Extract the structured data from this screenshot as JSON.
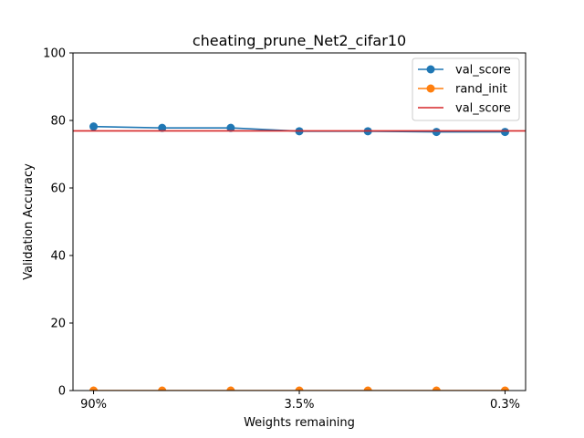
{
  "chart_data": {
    "type": "line",
    "title": "cheating_prune_Net2_cifar10",
    "xlabel": "Weights remaining",
    "ylabel": "Validation Accuracy",
    "x": [
      0,
      1,
      2,
      3,
      4,
      5,
      6
    ],
    "xlim": [
      -0.3,
      6.3
    ],
    "xticks": [
      {
        "x": 0,
        "label": "90%"
      },
      {
        "x": 3,
        "label": "3.5%"
      },
      {
        "x": 6,
        "label": "0.3%"
      }
    ],
    "ylim": [
      0,
      100
    ],
    "yticks": [
      0,
      20,
      40,
      60,
      80,
      100
    ],
    "grid": false,
    "legend_position": "top-right",
    "series": [
      {
        "name": "val_score",
        "style": "line-marker",
        "color": "#1f77b4",
        "values": [
          78.2,
          77.8,
          77.8,
          76.8,
          76.8,
          76.6,
          76.6
        ]
      },
      {
        "name": "rand_init",
        "style": "line-marker",
        "color": "#ff7f0e",
        "values": [
          0,
          0,
          0,
          0,
          0,
          0,
          0
        ]
      },
      {
        "name": "val_score",
        "style": "hline",
        "color": "#d62728",
        "value": 76.9
      }
    ]
  }
}
